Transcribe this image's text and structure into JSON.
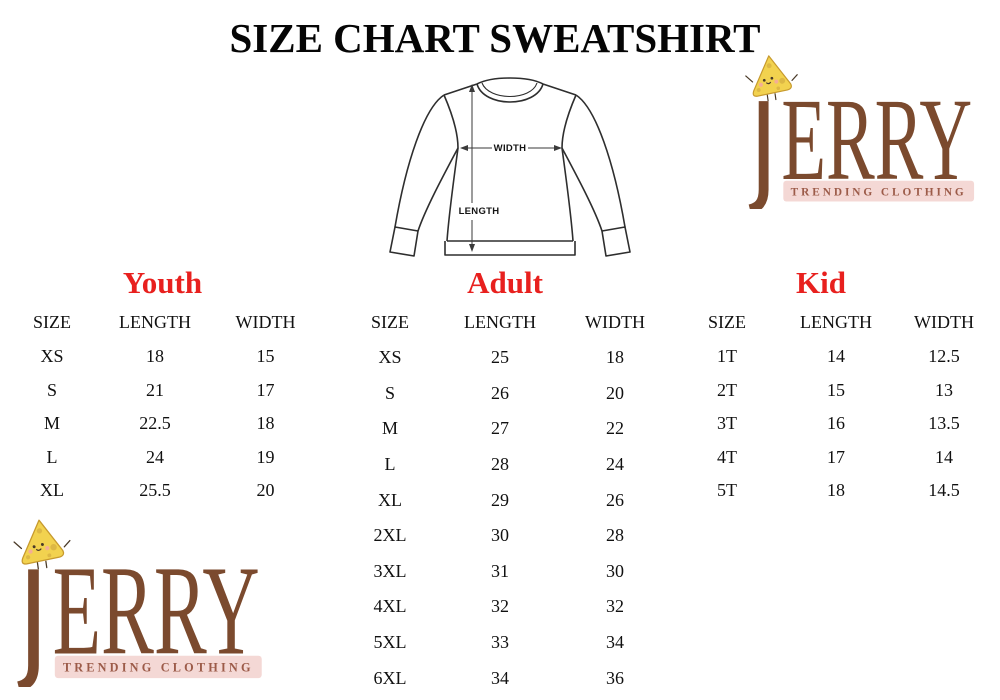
{
  "page": {
    "title": "SIZE CHART SWEATSHIRT"
  },
  "diagram": {
    "width_label": "WIDTH",
    "length_label": "LENGTH"
  },
  "logo": {
    "brand": "JERRY",
    "tagline": "TRENDING CLOTHING",
    "mascot": "cheese-wedge"
  },
  "colors": {
    "red": "#e8201e",
    "brown": "#7b4a2e",
    "tagline": "#9c5b49",
    "pink": "#f4d8d5",
    "cheese": "#f2d24f",
    "cheese-dark": "#ddb845",
    "ink": "#2e2e2e"
  },
  "tables": [
    {
      "id": "youth",
      "title": "Youth",
      "headers": [
        "SIZE",
        "LENGTH",
        "WIDTH"
      ],
      "rows": [
        [
          "XS",
          "18",
          "15"
        ],
        [
          "S",
          "21",
          "17"
        ],
        [
          "M",
          "22.5",
          "18"
        ],
        [
          "L",
          "24",
          "19"
        ],
        [
          "XL",
          "25.5",
          "20"
        ]
      ]
    },
    {
      "id": "adult",
      "title": "Adult",
      "headers": [
        "SIZE",
        "LENGTH",
        "WIDTH"
      ],
      "rows": [
        [
          "XS",
          "25",
          "18"
        ],
        [
          "S",
          "26",
          "20"
        ],
        [
          "M",
          "27",
          "22"
        ],
        [
          "L",
          "28",
          "24"
        ],
        [
          "XL",
          "29",
          "26"
        ],
        [
          "2XL",
          "30",
          "28"
        ],
        [
          "3XL",
          "31",
          "30"
        ],
        [
          "4XL",
          "32",
          "32"
        ],
        [
          "5XL",
          "33",
          "34"
        ],
        [
          "6XL",
          "34",
          "36"
        ]
      ]
    },
    {
      "id": "kid",
      "title": "Kid",
      "headers": [
        "SIZE",
        "LENGTH",
        "WIDTH"
      ],
      "rows": [
        [
          "1T",
          "14",
          "12.5"
        ],
        [
          "2T",
          "15",
          "13"
        ],
        [
          "3T",
          "16",
          "13.5"
        ],
        [
          "4T",
          "17",
          "14"
        ],
        [
          "5T",
          "18",
          "14.5"
        ]
      ]
    }
  ]
}
